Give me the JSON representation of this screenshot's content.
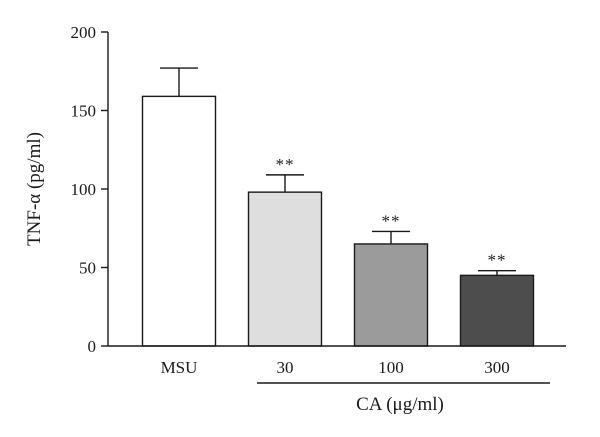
{
  "chart_data": {
    "type": "bar",
    "categories": [
      "MSU",
      "30",
      "100",
      "300"
    ],
    "values": [
      159,
      98,
      65,
      45
    ],
    "error_upper": [
      177,
      109,
      73,
      48
    ],
    "significance": [
      "",
      "**",
      "**",
      "**"
    ],
    "bar_colors": [
      "#ffffff",
      "#dedede",
      "#9b9b9b",
      "#4d4d4d"
    ],
    "xlabel": "",
    "ylabel": "TNF-α (pg/ml)",
    "group_label": "CA (μg/ml)",
    "yticks": [
      "0",
      "50",
      "100",
      "150",
      "200"
    ],
    "ylim": [
      0,
      200
    ],
    "grid": false,
    "legend": "none"
  }
}
